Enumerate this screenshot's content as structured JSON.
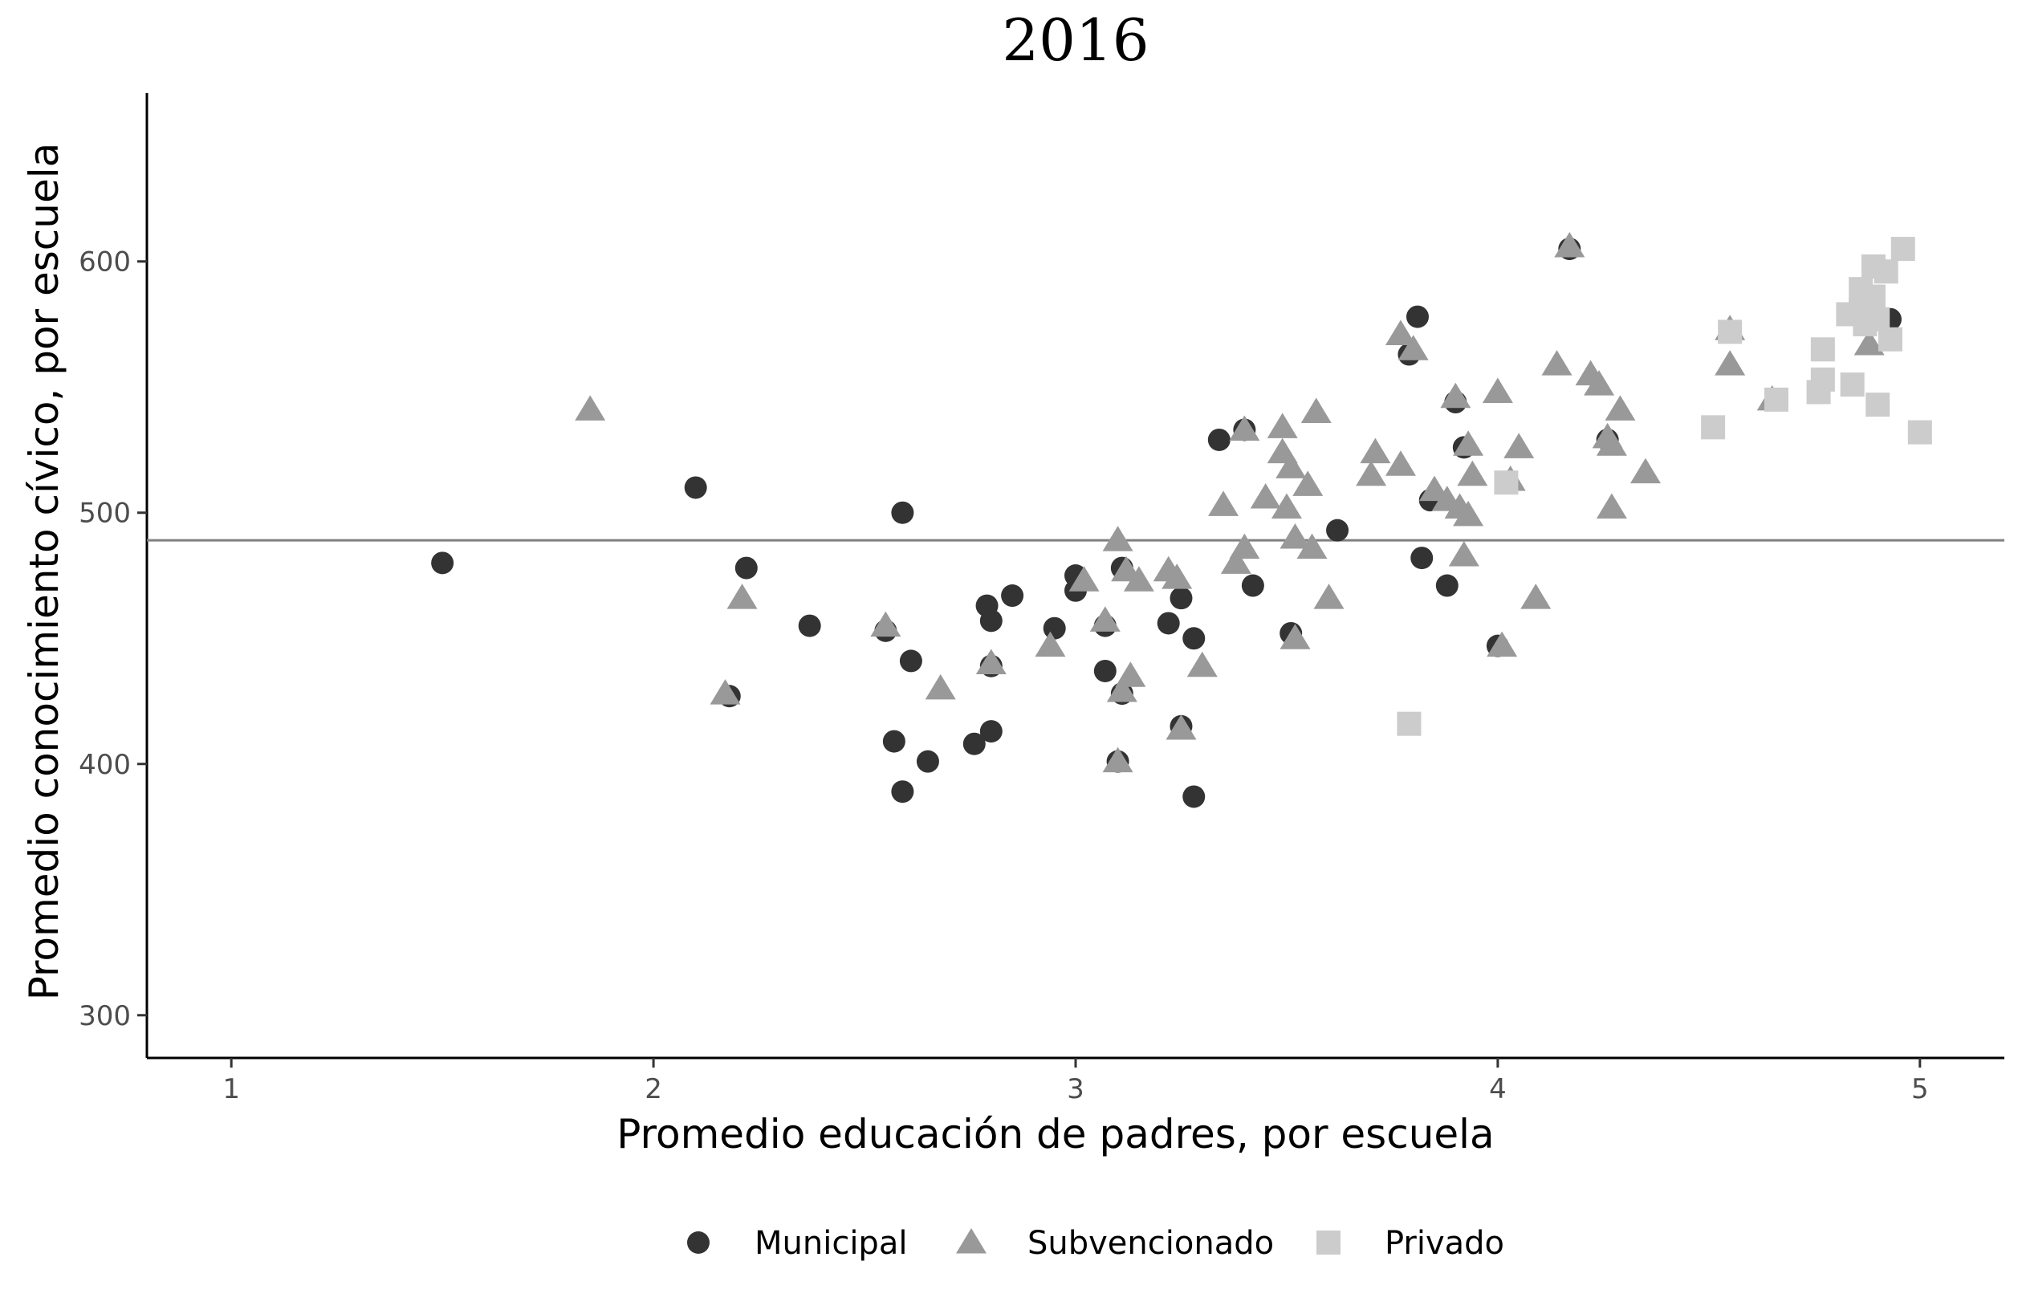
{
  "chart_data": {
    "type": "scatter",
    "title": "2016",
    "xlabel": "Promedio educación de padres, por escuela",
    "ylabel": "Promedio conocimiento cívico, por escuela",
    "xlim": [
      0.8,
      5.2
    ],
    "ylim": [
      283,
      667
    ],
    "xticks": [
      1,
      2,
      3,
      4,
      5
    ],
    "yticks": [
      300,
      400,
      500,
      600
    ],
    "reference_line": {
      "type": "horizontal",
      "y": 489,
      "color": "#808080"
    },
    "grid": false,
    "legend_position": "bottom",
    "series": [
      {
        "name": "Municipal",
        "marker": "circle",
        "color": "#333333",
        "points": [
          {
            "x": 1.5,
            "y": 480
          },
          {
            "x": 2.1,
            "y": 510
          },
          {
            "x": 2.18,
            "y": 427
          },
          {
            "x": 2.22,
            "y": 478
          },
          {
            "x": 2.37,
            "y": 455
          },
          {
            "x": 2.55,
            "y": 453
          },
          {
            "x": 2.57,
            "y": 409
          },
          {
            "x": 2.59,
            "y": 500
          },
          {
            "x": 2.59,
            "y": 389
          },
          {
            "x": 2.61,
            "y": 441
          },
          {
            "x": 2.65,
            "y": 401
          },
          {
            "x": 2.76,
            "y": 408
          },
          {
            "x": 2.79,
            "y": 463
          },
          {
            "x": 2.8,
            "y": 457
          },
          {
            "x": 2.8,
            "y": 439
          },
          {
            "x": 2.8,
            "y": 413
          },
          {
            "x": 2.85,
            "y": 467
          },
          {
            "x": 2.95,
            "y": 454
          },
          {
            "x": 3.0,
            "y": 475
          },
          {
            "x": 3.0,
            "y": 469
          },
          {
            "x": 3.07,
            "y": 455
          },
          {
            "x": 3.07,
            "y": 437
          },
          {
            "x": 3.1,
            "y": 401
          },
          {
            "x": 3.11,
            "y": 478
          },
          {
            "x": 3.11,
            "y": 428
          },
          {
            "x": 3.22,
            "y": 456
          },
          {
            "x": 3.25,
            "y": 466
          },
          {
            "x": 3.25,
            "y": 415
          },
          {
            "x": 3.28,
            "y": 450
          },
          {
            "x": 3.28,
            "y": 387
          },
          {
            "x": 3.34,
            "y": 529
          },
          {
            "x": 3.4,
            "y": 533
          },
          {
            "x": 3.42,
            "y": 471
          },
          {
            "x": 3.51,
            "y": 452
          },
          {
            "x": 3.62,
            "y": 493
          },
          {
            "x": 3.79,
            "y": 563
          },
          {
            "x": 3.81,
            "y": 578
          },
          {
            "x": 3.82,
            "y": 482
          },
          {
            "x": 3.84,
            "y": 505
          },
          {
            "x": 3.88,
            "y": 471
          },
          {
            "x": 3.9,
            "y": 544
          },
          {
            "x": 3.92,
            "y": 526
          },
          {
            "x": 4.0,
            "y": 447
          },
          {
            "x": 4.17,
            "y": 605
          },
          {
            "x": 4.26,
            "y": 529
          },
          {
            "x": 4.93,
            "y": 577
          }
        ]
      },
      {
        "name": "Subvencionado",
        "marker": "triangle",
        "color": "#999999",
        "points": [
          {
            "x": 1.85,
            "y": 541
          },
          {
            "x": 2.17,
            "y": 428
          },
          {
            "x": 2.21,
            "y": 466
          },
          {
            "x": 2.55,
            "y": 455
          },
          {
            "x": 2.68,
            "y": 430
          },
          {
            "x": 2.8,
            "y": 440
          },
          {
            "x": 2.94,
            "y": 447
          },
          {
            "x": 3.02,
            "y": 473
          },
          {
            "x": 3.07,
            "y": 457
          },
          {
            "x": 3.1,
            "y": 489
          },
          {
            "x": 3.1,
            "y": 401
          },
          {
            "x": 3.11,
            "y": 429
          },
          {
            "x": 3.12,
            "y": 477
          },
          {
            "x": 3.13,
            "y": 435
          },
          {
            "x": 3.15,
            "y": 473
          },
          {
            "x": 3.22,
            "y": 477
          },
          {
            "x": 3.24,
            "y": 474
          },
          {
            "x": 3.25,
            "y": 414
          },
          {
            "x": 3.3,
            "y": 439
          },
          {
            "x": 3.35,
            "y": 503
          },
          {
            "x": 3.38,
            "y": 480
          },
          {
            "x": 3.4,
            "y": 533
          },
          {
            "x": 3.4,
            "y": 486
          },
          {
            "x": 3.45,
            "y": 506
          },
          {
            "x": 3.49,
            "y": 534
          },
          {
            "x": 3.49,
            "y": 524
          },
          {
            "x": 3.5,
            "y": 502
          },
          {
            "x": 3.51,
            "y": 518
          },
          {
            "x": 3.52,
            "y": 490
          },
          {
            "x": 3.52,
            "y": 450
          },
          {
            "x": 3.55,
            "y": 511
          },
          {
            "x": 3.56,
            "y": 486
          },
          {
            "x": 3.57,
            "y": 540
          },
          {
            "x": 3.6,
            "y": 466
          },
          {
            "x": 3.7,
            "y": 515
          },
          {
            "x": 3.71,
            "y": 524
          },
          {
            "x": 3.77,
            "y": 571
          },
          {
            "x": 3.77,
            "y": 519
          },
          {
            "x": 3.8,
            "y": 565
          },
          {
            "x": 3.85,
            "y": 509
          },
          {
            "x": 3.88,
            "y": 505
          },
          {
            "x": 3.9,
            "y": 546
          },
          {
            "x": 3.91,
            "y": 502
          },
          {
            "x": 3.92,
            "y": 483
          },
          {
            "x": 3.93,
            "y": 499
          },
          {
            "x": 3.93,
            "y": 527
          },
          {
            "x": 3.94,
            "y": 515
          },
          {
            "x": 4.0,
            "y": 548
          },
          {
            "x": 4.01,
            "y": 447
          },
          {
            "x": 4.03,
            "y": 513
          },
          {
            "x": 4.05,
            "y": 526
          },
          {
            "x": 4.09,
            "y": 466
          },
          {
            "x": 4.14,
            "y": 559
          },
          {
            "x": 4.17,
            "y": 606
          },
          {
            "x": 4.22,
            "y": 555
          },
          {
            "x": 4.24,
            "y": 551
          },
          {
            "x": 4.26,
            "y": 530
          },
          {
            "x": 4.27,
            "y": 502
          },
          {
            "x": 4.27,
            "y": 527
          },
          {
            "x": 4.29,
            "y": 541
          },
          {
            "x": 4.35,
            "y": 516
          },
          {
            "x": 4.55,
            "y": 573
          },
          {
            "x": 4.55,
            "y": 559
          },
          {
            "x": 4.65,
            "y": 545
          },
          {
            "x": 4.88,
            "y": 567
          }
        ]
      },
      {
        "name": "Privado",
        "marker": "square",
        "color": "#cccccc",
        "points": [
          {
            "x": 3.79,
            "y": 416
          },
          {
            "x": 4.02,
            "y": 512
          },
          {
            "x": 4.51,
            "y": 534
          },
          {
            "x": 4.55,
            "y": 572
          },
          {
            "x": 4.66,
            "y": 545
          },
          {
            "x": 4.76,
            "y": 548
          },
          {
            "x": 4.77,
            "y": 553
          },
          {
            "x": 4.77,
            "y": 565
          },
          {
            "x": 4.83,
            "y": 579
          },
          {
            "x": 4.84,
            "y": 551
          },
          {
            "x": 4.86,
            "y": 589
          },
          {
            "x": 4.86,
            "y": 581
          },
          {
            "x": 4.87,
            "y": 575
          },
          {
            "x": 4.89,
            "y": 598
          },
          {
            "x": 4.89,
            "y": 586
          },
          {
            "x": 4.9,
            "y": 543
          },
          {
            "x": 4.9,
            "y": 577
          },
          {
            "x": 4.92,
            "y": 596
          },
          {
            "x": 4.93,
            "y": 569
          },
          {
            "x": 4.96,
            "y": 605
          },
          {
            "x": 5.0,
            "y": 532
          }
        ]
      }
    ]
  }
}
